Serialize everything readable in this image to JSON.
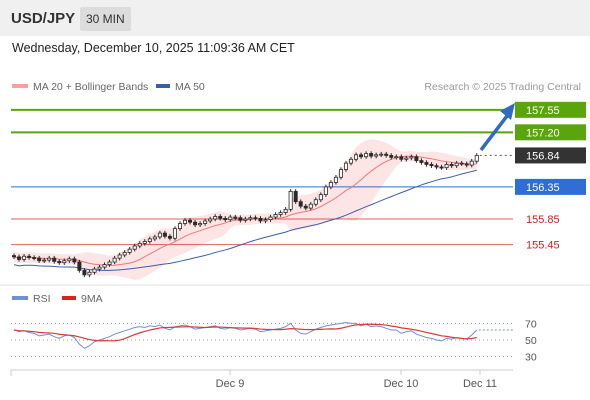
{
  "header": {
    "symbol": "USD/JPY",
    "timeframe": "30 MIN"
  },
  "timestamp": "Wednesday, December 10, 2025 11:09:36 AM CET",
  "legend": {
    "bollinger": "MA 20 + Bollinger Bands",
    "ma50": "MA 50",
    "credit": "Research © 2025 Trading Central",
    "rsi": "RSI",
    "rsi_ma": "9MA"
  },
  "colors": {
    "green": "#5aa50e",
    "blue": "#2e6ed6",
    "red": "#cc2222",
    "candle": "#2a2a2a",
    "ma20": "#f07878",
    "ma50": "#3a5fa8",
    "band_fill": "#fde1e1",
    "rsi_line": "#6f8fd6",
    "rsi_ma": "#d83a3a"
  },
  "levels": [
    {
      "value": "157.55",
      "type": "resistance"
    },
    {
      "value": "157.20",
      "type": "resistance"
    },
    {
      "value": "156.84",
      "type": "current"
    },
    {
      "value": "156.35",
      "type": "pivot"
    },
    {
      "value": "155.85",
      "type": "support"
    },
    {
      "value": "155.45",
      "type": "support"
    }
  ],
  "rsi_levels": [
    "70",
    "50",
    "30"
  ],
  "x_labels": [
    "Dec 9",
    "Dec 10",
    "Dec 11"
  ],
  "chart_data": {
    "type": "candlestick",
    "price_ylim": [
      154.9,
      157.75
    ],
    "close": [
      155.26,
      155.22,
      155.27,
      155.25,
      155.24,
      155.2,
      155.21,
      155.24,
      155.19,
      155.17,
      155.2,
      155.23,
      155.18,
      155.05,
      154.98,
      155.02,
      155.07,
      155.1,
      155.14,
      155.18,
      155.24,
      155.29,
      155.33,
      155.38,
      155.43,
      155.47,
      155.5,
      155.54,
      155.57,
      155.63,
      155.58,
      155.55,
      155.7,
      155.78,
      155.83,
      155.8,
      155.76,
      155.78,
      155.82,
      155.85,
      155.89,
      155.86,
      155.84,
      155.88,
      155.87,
      155.83,
      155.85,
      155.87,
      155.86,
      155.82,
      155.84,
      155.88,
      155.92,
      155.95,
      156.0,
      156.28,
      156.12,
      156.05,
      156.02,
      156.08,
      156.15,
      156.23,
      156.35,
      156.42,
      156.5,
      156.62,
      156.72,
      156.78,
      156.85,
      156.82,
      156.87,
      156.83,
      156.85,
      156.86,
      156.84,
      156.81,
      156.82,
      156.78,
      156.8,
      156.82,
      156.76,
      156.73,
      156.7,
      156.68,
      156.66,
      156.65,
      156.7,
      156.68,
      156.72,
      156.71,
      156.69,
      156.75,
      156.84
    ],
    "ma20_end": 156.69,
    "ma50_end": 156.61,
    "rsi_ylim": [
      20,
      80
    ],
    "rsi": [
      62,
      60,
      61,
      59,
      58,
      55,
      56,
      57,
      54,
      52,
      55,
      56,
      53,
      45,
      40,
      43,
      48,
      50,
      52,
      54,
      57,
      59,
      61,
      63,
      65,
      66,
      65,
      67,
      66,
      68,
      64,
      62,
      66,
      67,
      68,
      66,
      63,
      64,
      65,
      66,
      67,
      64,
      63,
      65,
      64,
      62,
      63,
      64,
      63,
      60,
      61,
      62,
      63,
      64,
      66,
      70,
      62,
      58,
      57,
      60,
      63,
      65,
      67,
      68,
      69,
      70,
      71,
      70,
      70,
      67,
      69,
      66,
      67,
      66,
      64,
      62,
      62,
      58,
      60,
      61,
      57,
      55,
      53,
      52,
      50,
      49,
      52,
      51,
      53,
      52,
      51,
      56,
      62
    ],
    "rsi_ma_end": 51
  }
}
